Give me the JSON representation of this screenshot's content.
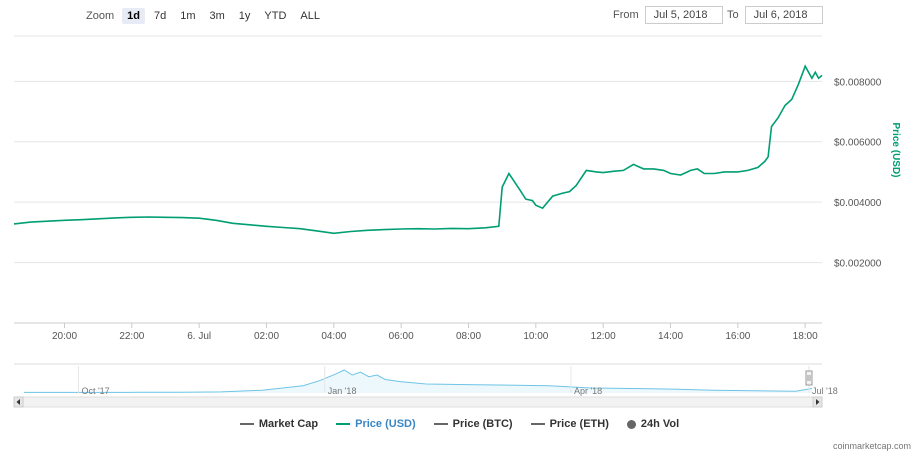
{
  "toolbar": {
    "zoom_label": "Zoom",
    "zoom_options": [
      "1d",
      "7d",
      "1m",
      "3m",
      "1y",
      "YTD",
      "ALL"
    ],
    "zoom_active": "1d",
    "from_label": "From",
    "from_value": "Jul 5, 2018",
    "to_label": "To",
    "to_value": "Jul 6, 2018"
  },
  "colors": {
    "price_usd": "#009e73",
    "navigator": "#6fc4e6",
    "grid": "#e6e6e6"
  },
  "chart_data": {
    "type": "line",
    "ylabel": "Price (USD)",
    "ylim": [
      0,
      0.0095
    ],
    "y_ticks": [
      "$0.002000",
      "$0.004000",
      "$0.006000",
      "$0.008000"
    ],
    "y_tick_values": [
      0.002,
      0.004,
      0.006,
      0.008
    ],
    "x_ticks": [
      "20:00",
      "22:00",
      "6. Jul",
      "02:00",
      "04:00",
      "06:00",
      "08:00",
      "10:00",
      "12:00",
      "14:00",
      "16:00",
      "18:00"
    ],
    "x_tick_hours": [
      20,
      22,
      24,
      26,
      28,
      30,
      32,
      34,
      36,
      38,
      40,
      42
    ],
    "x_range_hours": [
      18.5,
      42.5
    ],
    "series": [
      {
        "name": "Price (USD)",
        "x": [
          18.5,
          19.0,
          19.5,
          20.0,
          20.5,
          21.0,
          21.5,
          22.0,
          22.5,
          23.0,
          23.5,
          24.0,
          24.5,
          25.0,
          25.5,
          26.0,
          26.5,
          27.0,
          27.5,
          28.0,
          28.5,
          29.0,
          29.5,
          30.0,
          30.5,
          31.0,
          31.5,
          32.0,
          32.5,
          32.9,
          33.0,
          33.2,
          33.5,
          33.7,
          33.9,
          34.0,
          34.2,
          34.5,
          34.8,
          35.0,
          35.2,
          35.5,
          35.8,
          36.0,
          36.3,
          36.6,
          36.9,
          37.2,
          37.5,
          37.8,
          38.0,
          38.3,
          38.6,
          38.8,
          39.0,
          39.3,
          39.6,
          40.0,
          40.3,
          40.6,
          40.8,
          40.9,
          41.0,
          41.2,
          41.4,
          41.6,
          41.8,
          42.0,
          42.2,
          42.3,
          42.4,
          42.5
        ],
        "values": [
          0.00328,
          0.00334,
          0.00337,
          0.0034,
          0.00342,
          0.00345,
          0.00348,
          0.0035,
          0.00351,
          0.0035,
          0.00349,
          0.00347,
          0.0034,
          0.0033,
          0.00325,
          0.0032,
          0.00316,
          0.00312,
          0.00305,
          0.00297,
          0.00303,
          0.00307,
          0.00309,
          0.00311,
          0.00312,
          0.00311,
          0.00313,
          0.00312,
          0.00315,
          0.0032,
          0.0045,
          0.00495,
          0.00445,
          0.0041,
          0.00405,
          0.0039,
          0.0038,
          0.0042,
          0.0043,
          0.00435,
          0.00455,
          0.00505,
          0.005,
          0.00498,
          0.00502,
          0.00505,
          0.00525,
          0.0051,
          0.0051,
          0.00505,
          0.00495,
          0.0049,
          0.00505,
          0.0051,
          0.00495,
          0.00495,
          0.005,
          0.005,
          0.00505,
          0.00515,
          0.00535,
          0.0055,
          0.0065,
          0.0068,
          0.0072,
          0.0074,
          0.0079,
          0.0085,
          0.0081,
          0.0083,
          0.0081,
          0.0082
        ]
      }
    ],
    "navigator": {
      "labels": [
        "Oct '17",
        "Jan '18",
        "Apr '18",
        "Jul '18"
      ],
      "label_months": [
        0.3,
        3.3,
        6.3,
        9.2
      ],
      "range_months": [
        -0.4,
        9.2
      ],
      "x": [
        -0.4,
        0,
        0.5,
        1,
        1.5,
        2,
        2.5,
        3,
        3.2,
        3.4,
        3.5,
        3.6,
        3.7,
        3.8,
        3.9,
        4,
        4.2,
        4.5,
        5,
        5.5,
        6,
        6.5,
        7,
        7.5,
        8,
        8.5,
        9,
        9.2
      ],
      "values": [
        0.1,
        0.1,
        0.1,
        0.12,
        0.15,
        0.2,
        0.5,
        1.3,
        2.2,
        3.4,
        4.1,
        3.2,
        3.7,
        2.9,
        3.2,
        2.4,
        2.0,
        1.6,
        1.5,
        1.4,
        1.3,
        0.9,
        0.8,
        0.7,
        0.5,
        0.4,
        0.3,
        0.8
      ]
    }
  },
  "legend": [
    {
      "label": "Market Cap",
      "color": "#666666",
      "shape": "line"
    },
    {
      "label": "Price (USD)",
      "color": "#009e73",
      "shape": "line",
      "active": true
    },
    {
      "label": "Price (BTC)",
      "color": "#666666",
      "shape": "line"
    },
    {
      "label": "Price (ETH)",
      "color": "#666666",
      "shape": "line"
    },
    {
      "label": "24h Vol",
      "color": "#666666",
      "shape": "dot"
    }
  ],
  "credits": "coinmarketcap.com"
}
